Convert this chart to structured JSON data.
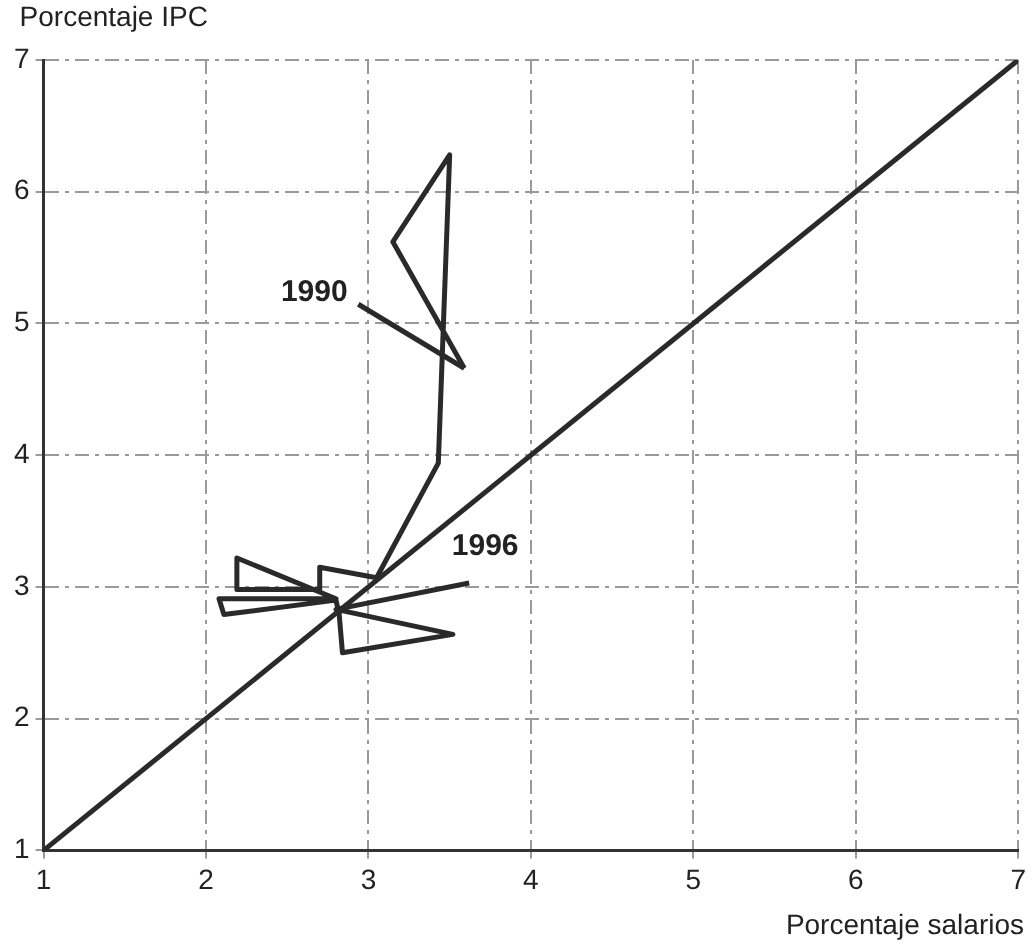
{
  "chart_data": {
    "type": "line",
    "xlabel": "Porcentaje salarios",
    "ylabel": "Porcentaje IPC",
    "xlim": [
      1,
      7
    ],
    "ylim": [
      1,
      7
    ],
    "xticks": [
      1,
      2,
      3,
      4,
      5,
      6,
      7
    ],
    "yticks": [
      1,
      2,
      3,
      4,
      5,
      6,
      7
    ],
    "grid": true,
    "marker": "none",
    "line_style": "solid",
    "series": [
      {
        "type": "line",
        "color": "#2a2a2a",
        "x": [
          3.59,
          3.15,
          3.5,
          3.43,
          3.05,
          2.7,
          2.7,
          2.19,
          2.19,
          2.8,
          2.08,
          2.11,
          2.8,
          2.82,
          2.84,
          3.52,
          2.8,
          3.62
        ],
        "values": [
          4.66,
          5.62,
          6.28,
          3.94,
          3.07,
          3.15,
          2.98,
          2.98,
          3.22,
          2.91,
          2.91,
          2.79,
          2.9,
          2.79,
          2.5,
          2.64,
          2.83,
          3.03
        ]
      },
      {
        "type": "line",
        "color": "#2a2a2a",
        "x": [
          1,
          7
        ],
        "values": [
          1,
          7
        ]
      }
    ],
    "annotations": [
      {
        "text": "1990",
        "x": 3.59,
        "y": 4.66
      },
      {
        "text": "1996",
        "x": 3.62,
        "y": 3.03
      }
    ]
  }
}
